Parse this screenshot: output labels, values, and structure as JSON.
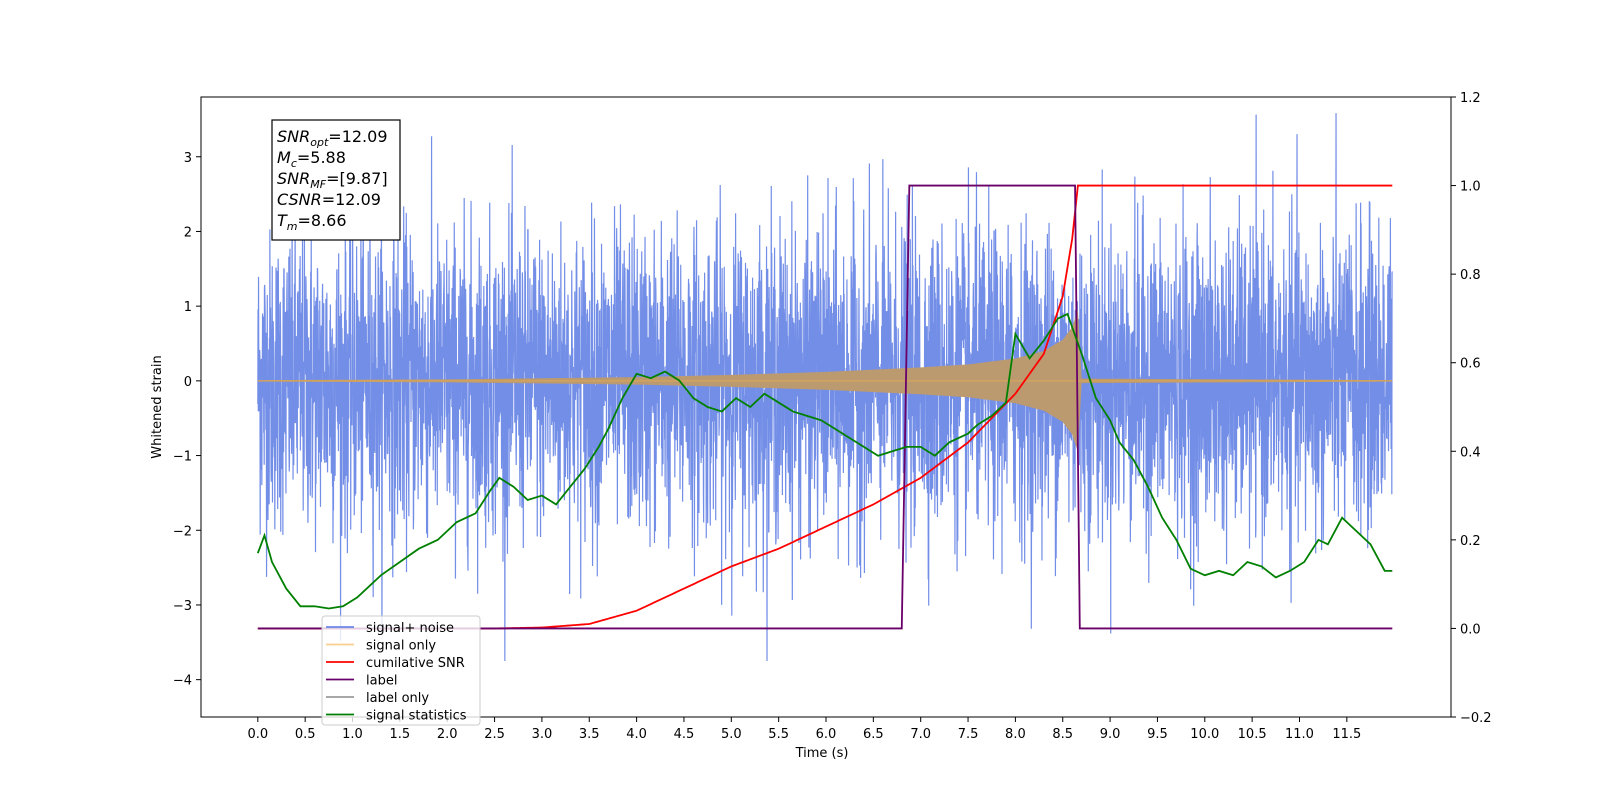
{
  "chart_data": {
    "type": "line",
    "xlabel": "Time (s)",
    "ylabel": "Whitened strain",
    "xlim": [
      -0.6,
      12.6
    ],
    "ylim": [
      -4.5,
      3.8
    ],
    "y2lim": [
      -0.2,
      1.2
    ],
    "xticks": [
      "0.0",
      "0.5",
      "1.0",
      "1.5",
      "2.0",
      "2.5",
      "3.0",
      "3.5",
      "4.0",
      "4.5",
      "5.0",
      "5.5",
      "6.0",
      "6.5",
      "7.0",
      "7.5",
      "8.0",
      "8.5",
      "9.0",
      "9.5",
      "10.0",
      "10.5",
      "11.0",
      "11.5"
    ],
    "yticks": [
      "3",
      "2",
      "1",
      "0",
      "−1",
      "−2",
      "−3",
      "−4"
    ],
    "y2ticks": [
      "1.2",
      "1.0",
      "0.8",
      "0.6",
      "0.4",
      "0.2",
      "0.0",
      "−0.2"
    ],
    "legend_position": "lower-left",
    "annotation": {
      "lines": [
        {
          "base": "SNR",
          "sub": "opt",
          "value": "=12.09"
        },
        {
          "base": "M",
          "sub": "c",
          "value": "=5.88"
        },
        {
          "base": "SNR",
          "sub": "MF",
          "value": "=[9.87]"
        },
        {
          "base": "CSNR",
          "sub": "",
          "value": "=12.09"
        },
        {
          "base": "T",
          "sub": "m",
          "value": "=8.66"
        }
      ]
    },
    "series": [
      {
        "name": "signal+ noise",
        "color": "#6b88e6",
        "axis": "left",
        "style": "noise",
        "x_range": [
          0.0,
          11.98
        ],
        "std": 1.0,
        "max_abs": 3.75
      },
      {
        "name": "signal only",
        "color": "#f5b041",
        "fill_color": "#bb9a70",
        "axis": "left",
        "style": "chirp",
        "envelope_points": [
          [
            0.0,
            0.01
          ],
          [
            2.0,
            0.02
          ],
          [
            4.0,
            0.05
          ],
          [
            5.0,
            0.08
          ],
          [
            6.0,
            0.12
          ],
          [
            7.0,
            0.18
          ],
          [
            7.5,
            0.22
          ],
          [
            8.0,
            0.3
          ],
          [
            8.3,
            0.4
          ],
          [
            8.5,
            0.55
          ],
          [
            8.6,
            0.72
          ],
          [
            8.66,
            0.95
          ],
          [
            8.7,
            0.03
          ],
          [
            12.0,
            0.01
          ]
        ]
      },
      {
        "name": "cumilative SNR",
        "color": "#ff0000",
        "axis": "right",
        "points": [
          [
            0.0,
            0.0
          ],
          [
            2.5,
            0.0
          ],
          [
            3.0,
            0.002
          ],
          [
            3.5,
            0.01
          ],
          [
            4.0,
            0.04
          ],
          [
            4.5,
            0.09
          ],
          [
            5.0,
            0.14
          ],
          [
            5.5,
            0.18
          ],
          [
            6.0,
            0.23
          ],
          [
            6.5,
            0.28
          ],
          [
            7.0,
            0.34
          ],
          [
            7.5,
            0.42
          ],
          [
            8.0,
            0.53
          ],
          [
            8.3,
            0.62
          ],
          [
            8.5,
            0.75
          ],
          [
            8.6,
            0.88
          ],
          [
            8.66,
            1.0
          ],
          [
            11.98,
            1.0
          ]
        ]
      },
      {
        "name": "label",
        "color": "#6a006a",
        "axis": "right",
        "points": [
          [
            0.0,
            0.0
          ],
          [
            6.8,
            0.0
          ],
          [
            6.88,
            1.0
          ],
          [
            8.63,
            1.0
          ],
          [
            8.68,
            0.0
          ],
          [
            11.98,
            0.0
          ]
        ]
      },
      {
        "name": "label only",
        "color": "#9b9b9b",
        "axis": "right",
        "hidden": true,
        "points": []
      },
      {
        "name": "signal statistics",
        "color": "#008000",
        "axis": "right",
        "points": [
          [
            0.0,
            0.17
          ],
          [
            0.07,
            0.21
          ],
          [
            0.15,
            0.15
          ],
          [
            0.3,
            0.09
          ],
          [
            0.45,
            0.05
          ],
          [
            0.6,
            0.05
          ],
          [
            0.75,
            0.045
          ],
          [
            0.9,
            0.05
          ],
          [
            1.05,
            0.07
          ],
          [
            1.3,
            0.12
          ],
          [
            1.5,
            0.15
          ],
          [
            1.7,
            0.18
          ],
          [
            1.9,
            0.2
          ],
          [
            2.1,
            0.24
          ],
          [
            2.3,
            0.26
          ],
          [
            2.45,
            0.31
          ],
          [
            2.55,
            0.34
          ],
          [
            2.7,
            0.32
          ],
          [
            2.85,
            0.29
          ],
          [
            3.0,
            0.3
          ],
          [
            3.15,
            0.28
          ],
          [
            3.3,
            0.32
          ],
          [
            3.45,
            0.36
          ],
          [
            3.6,
            0.41
          ],
          [
            3.7,
            0.45
          ],
          [
            3.85,
            0.52
          ],
          [
            4.0,
            0.575
          ],
          [
            4.15,
            0.565
          ],
          [
            4.3,
            0.58
          ],
          [
            4.45,
            0.56
          ],
          [
            4.6,
            0.52
          ],
          [
            4.75,
            0.5
          ],
          [
            4.9,
            0.49
          ],
          [
            5.05,
            0.52
          ],
          [
            5.2,
            0.5
          ],
          [
            5.35,
            0.53
          ],
          [
            5.5,
            0.51
          ],
          [
            5.65,
            0.49
          ],
          [
            5.8,
            0.48
          ],
          [
            5.95,
            0.47
          ],
          [
            6.1,
            0.45
          ],
          [
            6.25,
            0.43
          ],
          [
            6.4,
            0.41
          ],
          [
            6.55,
            0.39
          ],
          [
            6.7,
            0.4
          ],
          [
            6.85,
            0.41
          ],
          [
            7.0,
            0.41
          ],
          [
            7.15,
            0.39
          ],
          [
            7.3,
            0.42
          ],
          [
            7.5,
            0.44
          ],
          [
            7.6,
            0.46
          ],
          [
            7.75,
            0.48
          ],
          [
            7.9,
            0.51
          ],
          [
            8.0,
            0.665
          ],
          [
            8.15,
            0.61
          ],
          [
            8.3,
            0.65
          ],
          [
            8.45,
            0.7
          ],
          [
            8.55,
            0.71
          ],
          [
            8.7,
            0.62
          ],
          [
            8.85,
            0.52
          ],
          [
            9.0,
            0.47
          ],
          [
            9.1,
            0.42
          ],
          [
            9.25,
            0.38
          ],
          [
            9.4,
            0.32
          ],
          [
            9.55,
            0.25
          ],
          [
            9.7,
            0.2
          ],
          [
            9.85,
            0.135
          ],
          [
            10.0,
            0.12
          ],
          [
            10.15,
            0.13
          ],
          [
            10.3,
            0.12
          ],
          [
            10.45,
            0.15
          ],
          [
            10.6,
            0.14
          ],
          [
            10.75,
            0.115
          ],
          [
            10.9,
            0.13
          ],
          [
            11.05,
            0.15
          ],
          [
            11.2,
            0.2
          ],
          [
            11.3,
            0.19
          ],
          [
            11.45,
            0.25
          ],
          [
            11.6,
            0.22
          ],
          [
            11.75,
            0.19
          ],
          [
            11.9,
            0.13
          ],
          [
            11.98,
            0.13
          ]
        ]
      }
    ]
  }
}
